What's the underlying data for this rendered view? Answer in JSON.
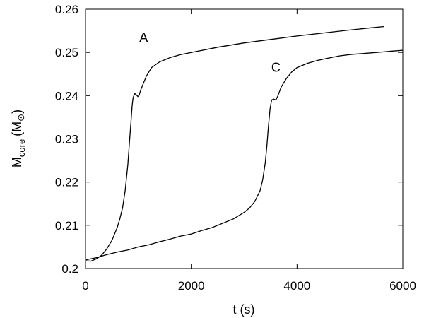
{
  "chart_data": {
    "type": "line",
    "xlabel": "t (s)",
    "ylabel": "M_core (M_sun)",
    "ylabel_parts": {
      "main": "M",
      "sub": "core",
      "open": "(M",
      "sun_symbol": "⊙",
      "close": ")"
    },
    "xlim": [
      0,
      6000
    ],
    "ylim": [
      0.2,
      0.26
    ],
    "xticks": [
      {
        "value": 0,
        "label": "0"
      },
      {
        "value": 2000,
        "label": "2000"
      },
      {
        "value": 4000,
        "label": "4000"
      },
      {
        "value": 6000,
        "label": "6000"
      }
    ],
    "yticks": [
      {
        "value": 0.2,
        "label": "0.2"
      },
      {
        "value": 0.21,
        "label": "0.21"
      },
      {
        "value": 0.22,
        "label": "0.22"
      },
      {
        "value": 0.23,
        "label": "0.23"
      },
      {
        "value": 0.24,
        "label": "0.24"
      },
      {
        "value": 0.25,
        "label": "0.25"
      },
      {
        "value": 0.26,
        "label": "0.26"
      }
    ],
    "grid": false,
    "legend": "none",
    "line_color": "#000000",
    "series": [
      {
        "label": "A",
        "label_position": {
          "x": 1100,
          "y": 0.2525
        },
        "points": [
          [
            0,
            0.2018
          ],
          [
            100,
            0.2017
          ],
          [
            200,
            0.2022
          ],
          [
            300,
            0.203
          ],
          [
            400,
            0.2045
          ],
          [
            500,
            0.2065
          ],
          [
            600,
            0.2095
          ],
          [
            650,
            0.2115
          ],
          [
            700,
            0.214
          ],
          [
            750,
            0.218
          ],
          [
            800,
            0.224
          ],
          [
            830,
            0.229
          ],
          [
            860,
            0.234
          ],
          [
            880,
            0.2375
          ],
          [
            900,
            0.2395
          ],
          [
            930,
            0.2405
          ],
          [
            960,
            0.2402
          ],
          [
            990,
            0.2398
          ],
          [
            1010,
            0.24
          ],
          [
            1050,
            0.2415
          ],
          [
            1100,
            0.243
          ],
          [
            1150,
            0.2445
          ],
          [
            1250,
            0.2465
          ],
          [
            1400,
            0.2478
          ],
          [
            1600,
            0.2488
          ],
          [
            1800,
            0.2495
          ],
          [
            2000,
            0.25
          ],
          [
            2500,
            0.2512
          ],
          [
            3000,
            0.2522
          ],
          [
            3500,
            0.253
          ],
          [
            4000,
            0.2538
          ],
          [
            4500,
            0.2545
          ],
          [
            5000,
            0.2552
          ],
          [
            5400,
            0.2557
          ],
          [
            5650,
            0.256
          ]
        ]
      },
      {
        "label": "C",
        "label_position": {
          "x": 3600,
          "y": 0.2455
        },
        "points": [
          [
            0,
            0.202
          ],
          [
            200,
            0.2025
          ],
          [
            400,
            0.2032
          ],
          [
            600,
            0.2038
          ],
          [
            800,
            0.2043
          ],
          [
            1000,
            0.205
          ],
          [
            1200,
            0.2055
          ],
          [
            1400,
            0.2062
          ],
          [
            1600,
            0.2068
          ],
          [
            1800,
            0.2075
          ],
          [
            2000,
            0.208
          ],
          [
            2200,
            0.2088
          ],
          [
            2400,
            0.2095
          ],
          [
            2600,
            0.2105
          ],
          [
            2800,
            0.2115
          ],
          [
            3000,
            0.213
          ],
          [
            3100,
            0.214
          ],
          [
            3200,
            0.2155
          ],
          [
            3300,
            0.218
          ],
          [
            3350,
            0.2205
          ],
          [
            3400,
            0.2245
          ],
          [
            3430,
            0.2285
          ],
          [
            3460,
            0.233
          ],
          [
            3490,
            0.237
          ],
          [
            3520,
            0.239
          ],
          [
            3560,
            0.2392
          ],
          [
            3600,
            0.239
          ],
          [
            3640,
            0.24
          ],
          [
            3700,
            0.242
          ],
          [
            3800,
            0.244
          ],
          [
            3900,
            0.2455
          ],
          [
            4000,
            0.2465
          ],
          [
            4200,
            0.2475
          ],
          [
            4400,
            0.2482
          ],
          [
            4600,
            0.2487
          ],
          [
            4800,
            0.2492
          ],
          [
            5000,
            0.2495
          ],
          [
            5200,
            0.2497
          ],
          [
            5400,
            0.2499
          ],
          [
            5600,
            0.2501
          ],
          [
            5800,
            0.2503
          ],
          [
            6000,
            0.2505
          ]
        ]
      }
    ]
  }
}
